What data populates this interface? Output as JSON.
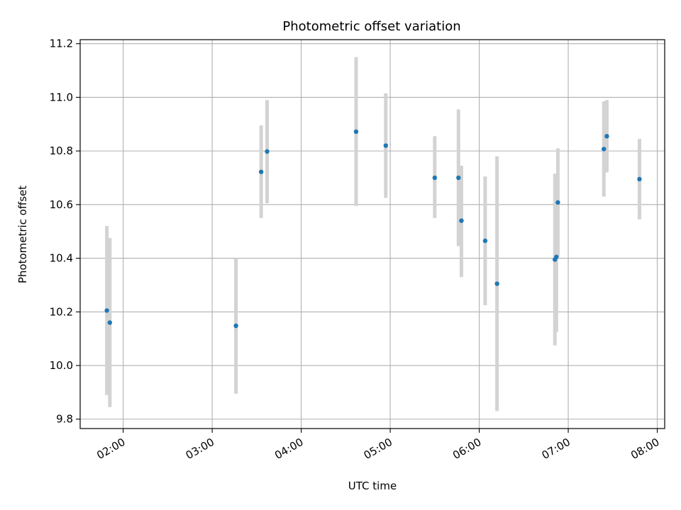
{
  "chart_data": {
    "type": "scatter",
    "title": "Photometric offset variation",
    "xlabel": "UTC time",
    "ylabel": "Photometric offset",
    "x_axis_kind": "time",
    "xlim": [
      "01:31",
      "08:05"
    ],
    "ylim": [
      9.765,
      11.215
    ],
    "grid": true,
    "x_ticks": [
      "02:00",
      "03:00",
      "04:00",
      "05:00",
      "06:00",
      "07:00",
      "08:00"
    ],
    "y_ticks": [
      "9.8",
      "10.0",
      "10.2",
      "10.4",
      "10.6",
      "10.8",
      "11.0",
      "11.2"
    ],
    "colors": {
      "point": "#1f77b4",
      "errorbar": "#d3d3d3",
      "grid": "#b0b0b0"
    },
    "points": [
      {
        "x": "01:49",
        "y": 10.205,
        "ylow": 9.89,
        "yhigh": 10.52
      },
      {
        "x": "01:51",
        "y": 10.16,
        "ylow": 9.845,
        "yhigh": 10.475
      },
      {
        "x": "03:16",
        "y": 10.148,
        "ylow": 9.895,
        "yhigh": 10.4
      },
      {
        "x": "03:33",
        "y": 10.722,
        "ylow": 10.55,
        "yhigh": 10.895
      },
      {
        "x": "03:37",
        "y": 10.798,
        "ylow": 10.605,
        "yhigh": 10.99
      },
      {
        "x": "04:37",
        "y": 10.872,
        "ylow": 10.595,
        "yhigh": 11.15
      },
      {
        "x": "04:57",
        "y": 10.82,
        "ylow": 10.625,
        "yhigh": 11.015
      },
      {
        "x": "05:30",
        "y": 10.7,
        "ylow": 10.55,
        "yhigh": 10.855
      },
      {
        "x": "05:46",
        "y": 10.7,
        "ylow": 10.445,
        "yhigh": 10.955
      },
      {
        "x": "05:48",
        "y": 10.54,
        "ylow": 10.33,
        "yhigh": 10.745
      },
      {
        "x": "06:04",
        "y": 10.465,
        "ylow": 10.225,
        "yhigh": 10.705
      },
      {
        "x": "06:12",
        "y": 10.305,
        "ylow": 9.83,
        "yhigh": 10.78
      },
      {
        "x": "06:51",
        "y": 10.395,
        "ylow": 10.075,
        "yhigh": 10.715
      },
      {
        "x": "06:52",
        "y": 10.405,
        "ylow": 10.125,
        "yhigh": 10.715
      },
      {
        "x": "06:53",
        "y": 10.608,
        "ylow": 10.405,
        "yhigh": 10.81
      },
      {
        "x": "07:24",
        "y": 10.807,
        "ylow": 10.63,
        "yhigh": 10.985
      },
      {
        "x": "07:26",
        "y": 10.855,
        "ylow": 10.72,
        "yhigh": 10.99
      },
      {
        "x": "07:48",
        "y": 10.695,
        "ylow": 10.545,
        "yhigh": 10.845
      }
    ]
  }
}
